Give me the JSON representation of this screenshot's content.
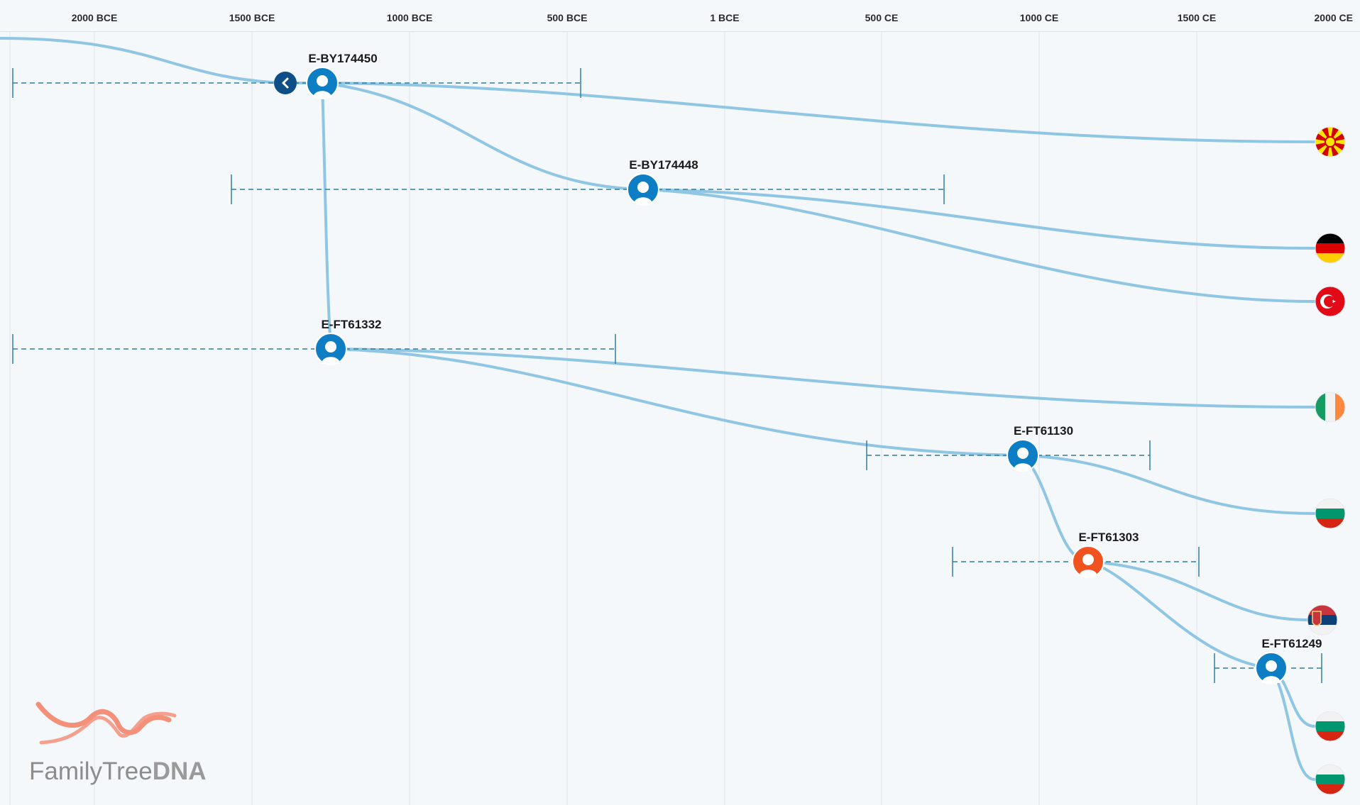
{
  "timeline": {
    "ticks": [
      "2000 BCE",
      "1500 BCE",
      "1000 BCE",
      "500 BCE",
      "1 BCE",
      "500 CE",
      "1000 CE",
      "1500 CE",
      "2000 CE"
    ]
  },
  "nodes": [
    {
      "id": "n1",
      "label": "E-BY174450",
      "color": "#0d7ec4"
    },
    {
      "id": "n2",
      "label": "E-BY174448",
      "color": "#0d7ec4"
    },
    {
      "id": "n3",
      "label": "E-FT61332",
      "color": "#0d7ec4"
    },
    {
      "id": "n4",
      "label": "E-FT61130",
      "color": "#0d7ec4"
    },
    {
      "id": "n5",
      "label": "E-FT61303",
      "color": "#f0531f"
    },
    {
      "id": "n6",
      "label": "E-FT61249",
      "color": "#0d7ec4"
    }
  ],
  "leaves": [
    {
      "country": "North Macedonia",
      "flag": "flag-north-macedonia"
    },
    {
      "country": "Germany",
      "flag": "flag-germany"
    },
    {
      "country": "Turkey",
      "flag": "flag-turkey"
    },
    {
      "country": "Ireland",
      "flag": "flag-ireland"
    },
    {
      "country": "Bulgaria",
      "flag": "flag-bulgaria"
    },
    {
      "country": "Serbia",
      "flag": "flag-serbia"
    },
    {
      "country": "Bulgaria",
      "flag": "flag-bulgaria"
    },
    {
      "country": "Bulgaria",
      "flag": "flag-bulgaria"
    }
  ],
  "colors": {
    "branch": "#8fc6e3",
    "range": "#2f7f9e",
    "node_blue": "#0d7ec4",
    "node_orange": "#f0531f",
    "back_button": "#0f4e86",
    "logo": "#f4907a"
  },
  "logo": {
    "text_light": "FamilyTree",
    "text_bold": "DNA"
  },
  "back_button": {
    "icon": "chevron-left-icon"
  }
}
